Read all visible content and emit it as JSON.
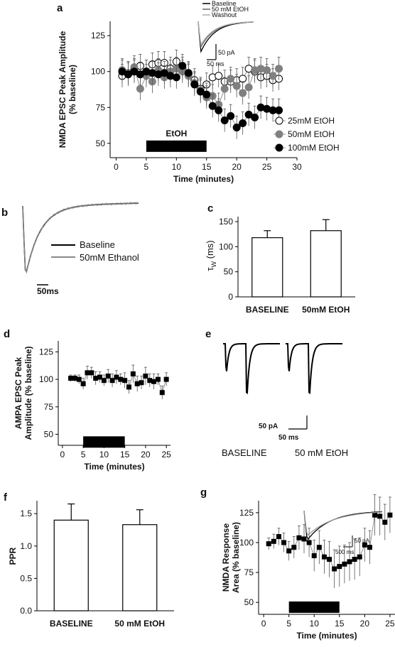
{
  "panels": {
    "a": {
      "label": "a"
    },
    "b": {
      "label": "b",
      "legend": [
        "Baseline",
        "50mM Ethanol"
      ],
      "scalebar": "50ms"
    },
    "c": {
      "label": "c"
    },
    "d": {
      "label": "d"
    },
    "e": {
      "label": "e",
      "scalebar_y": "50 pA",
      "scalebar_x": "50 ms",
      "captions": [
        "BASELINE",
        "50 mM EtOH"
      ]
    },
    "f": {
      "label": "f"
    },
    "g": {
      "label": "g",
      "scalebar_y": "50 pA",
      "scalebar_x": "500 ms"
    }
  },
  "colors": {
    "black": "#000000",
    "gray": "#808080",
    "open": "#ffffff",
    "errorbar": "#b0b0b0"
  },
  "chart_data": [
    {
      "id": "a",
      "type": "scatter",
      "ylabel": "NMDA EPSC Peak Amplitude (% baseline)",
      "ylabel_lines": [
        "NMDA EPSC Peak Amplitude",
        "(% baseline)"
      ],
      "xlabel": "Time (minutes)",
      "xlim": [
        -1,
        30
      ],
      "ylim": [
        40,
        135
      ],
      "xticks": [
        0,
        5,
        10,
        15,
        20,
        25,
        30
      ],
      "yticks": [
        50,
        75,
        100,
        125
      ],
      "bar": {
        "from": 5,
        "to": 15,
        "label": "EtOH"
      },
      "series": [
        {
          "name": "25mM EtOH",
          "marker": "open",
          "x": [
            1,
            2,
            3,
            4,
            5,
            6,
            7,
            8,
            9,
            10,
            11,
            12,
            13,
            14,
            15,
            16,
            17,
            18,
            19,
            20,
            21,
            22,
            23,
            24,
            25,
            26,
            27
          ],
          "y": [
            97,
            99,
            101,
            104,
            100,
            105,
            106,
            106,
            102,
            107,
            102,
            98,
            94,
            88,
            91,
            96,
            97,
            93,
            93,
            94,
            95,
            102,
            100,
            96,
            97,
            94,
            95
          ]
        },
        {
          "name": "50mM EtOH",
          "marker": "gray",
          "x": [
            1,
            2,
            3,
            4,
            5,
            6,
            7,
            8,
            9,
            10,
            11,
            12,
            13,
            14,
            15,
            16,
            17,
            18,
            19,
            20,
            21,
            22,
            23,
            24,
            25,
            26,
            27
          ],
          "y": [
            101,
            99,
            103,
            88,
            97,
            93,
            101,
            96,
            100,
            102,
            100,
            97,
            92,
            87,
            82,
            83,
            77,
            88,
            95,
            90,
            85,
            89,
            101,
            102,
            101,
            97,
            102
          ]
        },
        {
          "name": "100mM EtOH",
          "marker": "black",
          "x": [
            1,
            2,
            3,
            4,
            5,
            6,
            7,
            8,
            9,
            10,
            11,
            12,
            13,
            14,
            15,
            16,
            17,
            18,
            19,
            20,
            21,
            22,
            23,
            24,
            25,
            26,
            27
          ],
          "y": [
            100,
            98,
            100,
            98,
            100,
            99,
            98,
            99,
            97,
            96,
            104,
            99,
            91,
            86,
            84,
            76,
            73,
            66,
            69,
            61,
            64,
            70,
            68,
            75,
            74,
            73,
            73
          ]
        }
      ],
      "inset": {
        "legend": [
          "Baseline",
          "50 mM EtOH",
          "Washout"
        ],
        "scalebar_y": "50 pA",
        "scalebar_x": "50 ms"
      }
    },
    {
      "id": "c",
      "type": "bar",
      "ylabel": "τ_W (ms)",
      "categories": [
        "BASELINE",
        "50mM EtOH"
      ],
      "values": [
        118,
        132
      ],
      "errors": [
        14,
        22
      ],
      "ylim": [
        0,
        160
      ],
      "yticks": [
        0,
        50,
        100,
        150
      ]
    },
    {
      "id": "d",
      "type": "scatter",
      "ylabel": "AMPA EPSC Peak Amplitude (% baseline)",
      "ylabel_lines": [
        "AMPA EPSC Peak",
        "Amplitude (% baseline)"
      ],
      "xlabel": "Time (minutes)",
      "xlim": [
        -1,
        26
      ],
      "ylim": [
        40,
        135
      ],
      "xticks": [
        0,
        5,
        10,
        15,
        20,
        25
      ],
      "yticks": [
        50,
        75,
        100,
        125
      ],
      "bar": {
        "from": 5,
        "to": 15
      },
      "series": [
        {
          "marker": "square",
          "x": [
            2,
            3,
            4,
            5,
            6,
            7,
            8,
            9,
            10,
            11,
            12,
            13,
            14,
            15,
            16,
            17,
            18,
            19,
            20,
            21,
            22,
            23,
            24,
            25
          ],
          "y": [
            101,
            101,
            100,
            96,
            106,
            106,
            101,
            102,
            99,
            103,
            99,
            102,
            100,
            99,
            93,
            105,
            96,
            97,
            103,
            99,
            98,
            100,
            88,
            100
          ],
          "err": [
            3,
            3,
            4,
            5,
            6,
            5,
            6,
            5,
            5,
            6,
            6,
            6,
            5,
            7,
            6,
            8,
            7,
            6,
            8,
            6,
            7,
            5,
            6,
            6
          ]
        }
      ]
    },
    {
      "id": "f",
      "type": "bar",
      "ylabel": "PPR",
      "categories": [
        "BASELINE",
        "50 mM EtOH"
      ],
      "values": [
        1.4,
        1.33
      ],
      "errors": [
        0.25,
        0.23
      ],
      "ylim": [
        0,
        1.7
      ],
      "yticks": [
        0.0,
        0.5,
        1.0,
        1.5
      ]
    },
    {
      "id": "g",
      "type": "scatter",
      "ylabel": "NMDA Response Area (% baseline)",
      "ylabel_lines": [
        "NMDA Response",
        "Area (% baseline)"
      ],
      "xlabel": "Time (minutes)",
      "xlim": [
        -1,
        26
      ],
      "ylim": [
        40,
        135
      ],
      "xticks": [
        0,
        5,
        10,
        15,
        20,
        25
      ],
      "yticks": [
        50,
        75,
        100,
        125
      ],
      "bar": {
        "from": 5,
        "to": 15
      },
      "series": [
        {
          "marker": "square",
          "x": [
            1,
            2,
            3,
            4,
            5,
            6,
            7,
            8,
            9,
            10,
            11,
            12,
            13,
            14,
            15,
            16,
            17,
            18,
            19,
            20,
            21,
            22,
            23,
            24,
            25
          ],
          "y": [
            99,
            101,
            105,
            100,
            93,
            96,
            104,
            103,
            100,
            89,
            96,
            88,
            86,
            78,
            80,
            82,
            84,
            86,
            88,
            98,
            96,
            123,
            122,
            117,
            123
          ],
          "err": [
            5,
            6,
            7,
            8,
            8,
            9,
            10,
            12,
            12,
            13,
            14,
            14,
            15,
            16,
            17,
            16,
            16,
            17,
            16,
            14,
            14,
            17,
            16,
            15,
            15
          ]
        }
      ]
    }
  ]
}
